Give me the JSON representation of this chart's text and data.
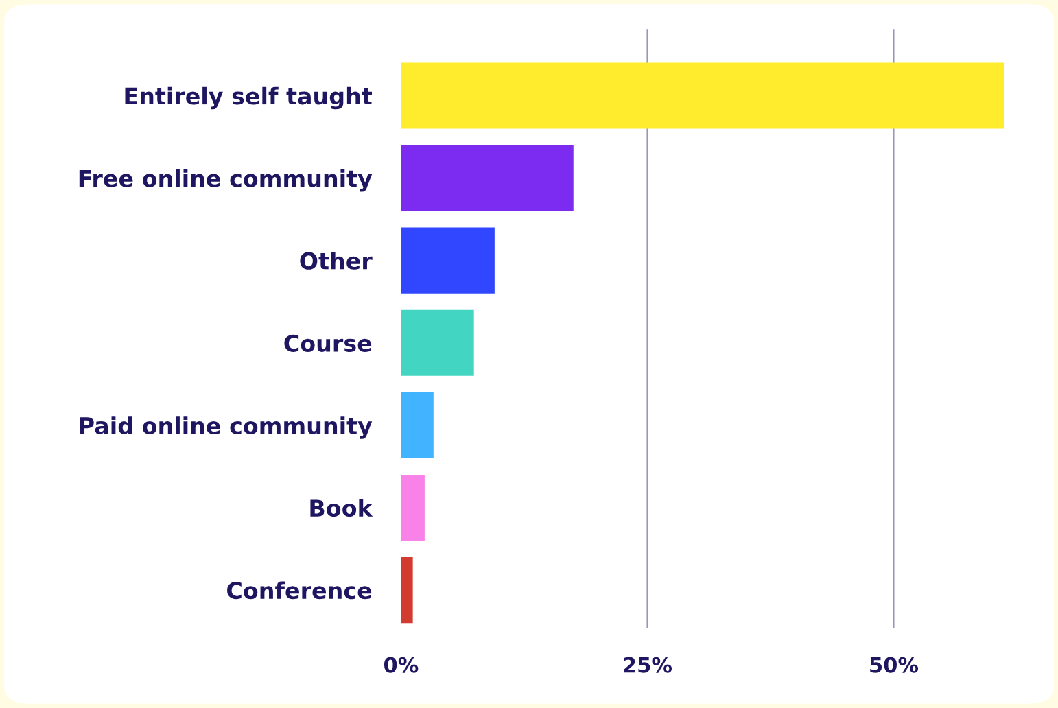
{
  "chart_data": {
    "type": "bar",
    "orientation": "horizontal",
    "categories": [
      "Entirely self taught",
      "Free online community",
      "Other",
      "Course",
      "Paid online community",
      "Book",
      "Conference"
    ],
    "values": [
      61.2,
      17.5,
      9.5,
      7.4,
      3.3,
      2.4,
      1.2
    ],
    "colors": [
      "#ffec2d",
      "#7b2cf0",
      "#3047ff",
      "#42d6c2",
      "#42b4ff",
      "#f882e8",
      "#d13b30"
    ],
    "xlim": [
      0,
      61.2
    ],
    "xticks": [
      {
        "value": 0,
        "label": "0%"
      },
      {
        "value": 25,
        "label": "25%"
      },
      {
        "value": 50,
        "label": "50%"
      }
    ],
    "grid": "x",
    "legend": false
  }
}
